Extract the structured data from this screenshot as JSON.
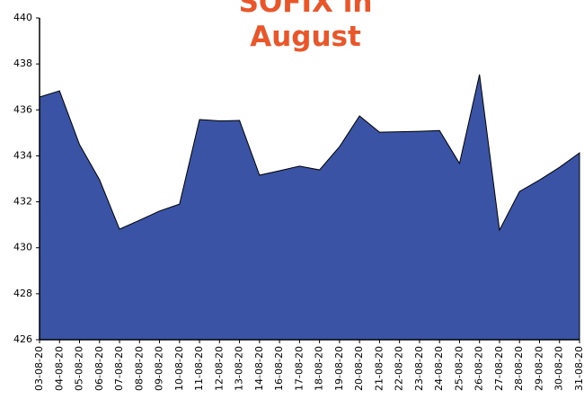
{
  "chart_data": {
    "type": "area",
    "title": "SOFIX in August",
    "categories": [
      "03-08-20",
      "04-08-20",
      "05-08-20",
      "06-08-20",
      "07-08-20",
      "08-08-20",
      "09-08-20",
      "10-08-20",
      "11-08-20",
      "12-08-20",
      "13-08-20",
      "14-08-20",
      "16-08-20",
      "17-08-20",
      "18-08-20",
      "19-08-20",
      "20-08-20",
      "21-08-20",
      "22-08-20",
      "23-08-20",
      "24-08-20",
      "25-08-20",
      "26-08-20",
      "27-08-20",
      "28-08-20",
      "29-08-20",
      "30-08-20",
      "31-08-20"
    ],
    "values": [
      436.56,
      436.83,
      434.49,
      432.96,
      430.81,
      431.2,
      431.6,
      431.9,
      435.58,
      435.52,
      435.54,
      433.16,
      433.35,
      433.55,
      433.39,
      434.4,
      435.74,
      435.03,
      435.05,
      435.07,
      435.1,
      433.67,
      437.54,
      430.77,
      432.45,
      432.95,
      433.5,
      434.13
    ],
    "color": "#3a53a4",
    "title_color": "#e8562a",
    "ylim": [
      426,
      440
    ],
    "yticks": [
      426,
      428,
      430,
      432,
      434,
      436,
      438,
      440
    ],
    "grid": false
  }
}
